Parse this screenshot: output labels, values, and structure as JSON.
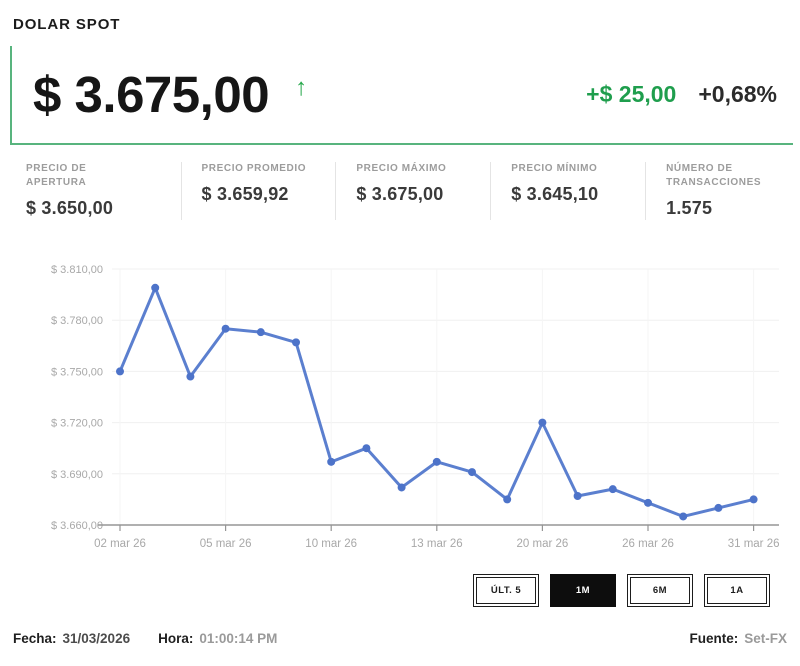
{
  "header": {
    "title": "DOLAR SPOT",
    "price": "$ 3.675,00",
    "trend_arrow": "↑",
    "change_abs": "+$ 25,00",
    "change_pct": "+0,68%"
  },
  "stats": [
    {
      "id": "precio-apertura",
      "label": "PRECIO DE APERTURA",
      "value": "$ 3.650,00"
    },
    {
      "id": "precio-promedio",
      "label": "PRECIO PROMEDIO",
      "value": "$ 3.659,92"
    },
    {
      "id": "precio-maximo",
      "label": "PRECIO MÁXIMO",
      "value": "$ 3.675,00"
    },
    {
      "id": "precio-minimo",
      "label": "PRECIO MÍNIMO",
      "value": "$ 3.645,10"
    },
    {
      "id": "numero-transacciones",
      "label": "NÚMERO DE TRANSACCIONES",
      "value": "1.575"
    }
  ],
  "chart_data": {
    "type": "line",
    "series": [
      {
        "name": "Dolar Spot",
        "values": [
          3750,
          3799,
          3747,
          3775,
          3773,
          3767,
          3697,
          3705,
          3682,
          3697,
          3691,
          3675,
          3720,
          3677,
          3681,
          3673,
          3665,
          3670,
          3675
        ]
      }
    ],
    "x_tick_labels": [
      "02 mar 26",
      "05 mar 26",
      "10 mar 26",
      "13 mar 26",
      "20 mar 26",
      "26 mar 26",
      "31 mar 26"
    ],
    "x_tick_point_indices": [
      0,
      3,
      6,
      9,
      12,
      15,
      18
    ],
    "y_tick_labels": [
      "$ 3.810,00",
      "$ 3.780,00",
      "$ 3.750,00",
      "$ 3.720,00",
      "$ 3.690,00",
      "$ 3.660,00"
    ],
    "y_tick_values": [
      3810,
      3780,
      3750,
      3720,
      3690,
      3660
    ],
    "ylim": [
      3660,
      3810
    ],
    "grid": "faint",
    "legend": "none"
  },
  "range_buttons": [
    {
      "label": "ÚLT. 5",
      "active": false
    },
    {
      "label": "1M",
      "active": true
    },
    {
      "label": "6M",
      "active": false
    },
    {
      "label": "1A",
      "active": false
    }
  ],
  "footer": {
    "fecha_label": "Fecha:",
    "fecha_value": "31/03/2026",
    "hora_label": "Hora:",
    "hora_value": "01:00:14 PM",
    "fuente_label": "Fuente:",
    "fuente_value": "Set-FX"
  },
  "colors": {
    "accent_green_border": "#58b47e",
    "change_green_text": "#1f9e4d",
    "arrow_green": "#27a84c",
    "line_blue": "#5b7fcf",
    "marker_blue": "#4d73c9",
    "active_button_black": "#0d0d0d",
    "axis_gray": "#959595",
    "label_gray": "#a8a8a8"
  }
}
